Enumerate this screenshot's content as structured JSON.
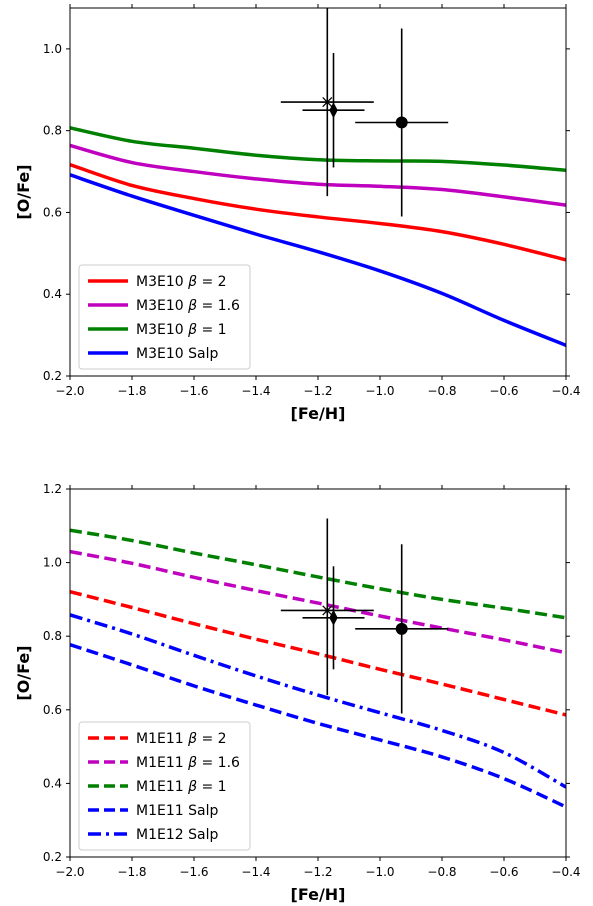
{
  "chart_data": [
    {
      "type": "line",
      "xlabel": "[Fe/H]",
      "ylabel": "[O/Fe]",
      "xlim": [
        -2.0,
        -0.4
      ],
      "ylim": [
        0.2,
        1.1
      ],
      "xticks": [
        -2.0,
        -1.8,
        -1.6,
        -1.4,
        -1.2,
        -1.0,
        -0.8,
        -0.6,
        -0.4
      ],
      "xtick_labels": [
        "−2.0",
        "−1.8",
        "−1.6",
        "−1.4",
        "−1.2",
        "−1.0",
        "−0.8",
        "−0.6",
        "−0.4"
      ],
      "yticks": [
        0.2,
        0.4,
        0.6,
        0.8,
        1.0
      ],
      "ytick_labels": [
        "0.2",
        "0.4",
        "0.6",
        "0.8",
        "1.0"
      ],
      "legend_position": "bottom-left",
      "grid": false,
      "series": [
        {
          "name": "M3E10 β = 2",
          "name_parts": [
            "M3E10 ",
            "β",
            " = 2"
          ],
          "color": "#ff0000",
          "style": "solid",
          "x": [
            -2.0,
            -1.8,
            -1.6,
            -1.4,
            -1.2,
            -1.0,
            -0.8,
            -0.6,
            -0.4
          ],
          "y": [
            0.717,
            0.666,
            0.634,
            0.608,
            0.589,
            0.573,
            0.553,
            0.522,
            0.484
          ]
        },
        {
          "name": "M3E10 β = 1.6",
          "name_parts": [
            "M3E10 ",
            "β",
            " = 1.6"
          ],
          "color": "#bf00bf",
          "style": "solid",
          "x": [
            -2.0,
            -1.8,
            -1.6,
            -1.4,
            -1.2,
            -1.0,
            -0.8,
            -0.6,
            -0.4
          ],
          "y": [
            0.764,
            0.722,
            0.7,
            0.682,
            0.669,
            0.664,
            0.656,
            0.638,
            0.618
          ]
        },
        {
          "name": "M3E10 β = 1",
          "name_parts": [
            "M3E10 ",
            "β",
            " = 1"
          ],
          "color": "#008000",
          "style": "solid",
          "x": [
            -2.0,
            -1.8,
            -1.6,
            -1.4,
            -1.2,
            -1.0,
            -0.8,
            -0.6,
            -0.4
          ],
          "y": [
            0.807,
            0.774,
            0.757,
            0.74,
            0.729,
            0.726,
            0.725,
            0.716,
            0.703
          ]
        },
        {
          "name": "M3E10 Salp",
          "name_parts": [
            "M3E10 Salp"
          ],
          "color": "#0000ff",
          "style": "solid",
          "x": [
            -2.0,
            -1.8,
            -1.6,
            -1.4,
            -1.2,
            -1.0,
            -0.8,
            -0.6,
            -0.4
          ],
          "y": [
            0.692,
            0.64,
            0.593,
            0.547,
            0.504,
            0.457,
            0.402,
            0.336,
            0.275
          ]
        }
      ],
      "observations": [
        {
          "marker": "star",
          "x": -1.17,
          "y": 0.87,
          "xerr": 0.15,
          "yerr": [
            0.23,
            0.25
          ]
        },
        {
          "marker": "diamond",
          "x": -1.15,
          "y": 0.85,
          "xerr": 0.1,
          "yerr": 0.14
        },
        {
          "marker": "circle",
          "x": -0.93,
          "y": 0.82,
          "xerr": 0.15,
          "yerr": 0.23
        }
      ]
    },
    {
      "type": "line",
      "xlabel": "[Fe/H]",
      "ylabel": "[O/Fe]",
      "xlim": [
        -2.0,
        -0.4
      ],
      "ylim": [
        0.2,
        1.2
      ],
      "xticks": [
        -2.0,
        -1.8,
        -1.6,
        -1.4,
        -1.2,
        -1.0,
        -0.8,
        -0.6,
        -0.4
      ],
      "xtick_labels": [
        "−2.0",
        "−1.8",
        "−1.6",
        "−1.4",
        "−1.2",
        "−1.0",
        "−0.8",
        "−0.6",
        "−0.4"
      ],
      "yticks": [
        0.2,
        0.4,
        0.6,
        0.8,
        1.0,
        1.2
      ],
      "ytick_labels": [
        "0.2",
        "0.4",
        "0.6",
        "0.8",
        "1.0",
        "1.2"
      ],
      "legend_position": "bottom-left",
      "grid": false,
      "series": [
        {
          "name": "M1E11 β = 2",
          "name_parts": [
            "M1E11 ",
            "β",
            " = 2"
          ],
          "color": "#ff0000",
          "style": "dashed",
          "x": [
            -2.0,
            -1.8,
            -1.6,
            -1.4,
            -1.2,
            -1.0,
            -0.8,
            -0.6,
            -0.4
          ],
          "y": [
            0.921,
            0.878,
            0.834,
            0.792,
            0.752,
            0.71,
            0.67,
            0.628,
            0.586
          ]
        },
        {
          "name": "M1E11 β = 1.6",
          "name_parts": [
            "M1E11 ",
            "β",
            " = 1.6"
          ],
          "color": "#bf00bf",
          "style": "dashed",
          "x": [
            -2.0,
            -1.8,
            -1.6,
            -1.4,
            -1.2,
            -1.0,
            -0.8,
            -0.6,
            -0.4
          ],
          "y": [
            1.03,
            0.998,
            0.96,
            0.924,
            0.89,
            0.855,
            0.822,
            0.79,
            0.755
          ]
        },
        {
          "name": "M1E11 β = 1",
          "name_parts": [
            "M1E11 ",
            "β",
            " = 1"
          ],
          "color": "#008000",
          "style": "dashed",
          "x": [
            -2.0,
            -1.8,
            -1.6,
            -1.4,
            -1.2,
            -1.0,
            -0.8,
            -0.6,
            -0.4
          ],
          "y": [
            1.088,
            1.06,
            1.026,
            0.994,
            0.961,
            0.929,
            0.9,
            0.876,
            0.85
          ]
        },
        {
          "name": "M1E11 Salp",
          "name_parts": [
            "M1E11 Salp"
          ],
          "color": "#0000ff",
          "style": "dashed",
          "x": [
            -2.0,
            -1.8,
            -1.6,
            -1.4,
            -1.2,
            -1.0,
            -0.8,
            -0.6,
            -0.4
          ],
          "y": [
            0.777,
            0.722,
            0.665,
            0.613,
            0.563,
            0.518,
            0.472,
            0.413,
            0.336
          ]
        },
        {
          "name": "M1E12 Salp",
          "name_parts": [
            "M1E12 Salp"
          ],
          "color": "#0000ff",
          "style": "dashdot",
          "x": [
            -2.0,
            -1.8,
            -1.6,
            -1.4,
            -1.2,
            -1.0,
            -0.8,
            -0.6,
            -0.4
          ],
          "y": [
            0.858,
            0.806,
            0.748,
            0.692,
            0.64,
            0.592,
            0.544,
            0.484,
            0.39
          ]
        }
      ],
      "observations": [
        {
          "marker": "star",
          "x": -1.17,
          "y": 0.87,
          "xerr": 0.15,
          "yerr": [
            0.23,
            0.25
          ]
        },
        {
          "marker": "diamond",
          "x": -1.15,
          "y": 0.85,
          "xerr": 0.1,
          "yerr": 0.14
        },
        {
          "marker": "circle",
          "x": -0.93,
          "y": 0.82,
          "xerr": 0.15,
          "yerr": 0.23
        }
      ]
    }
  ]
}
